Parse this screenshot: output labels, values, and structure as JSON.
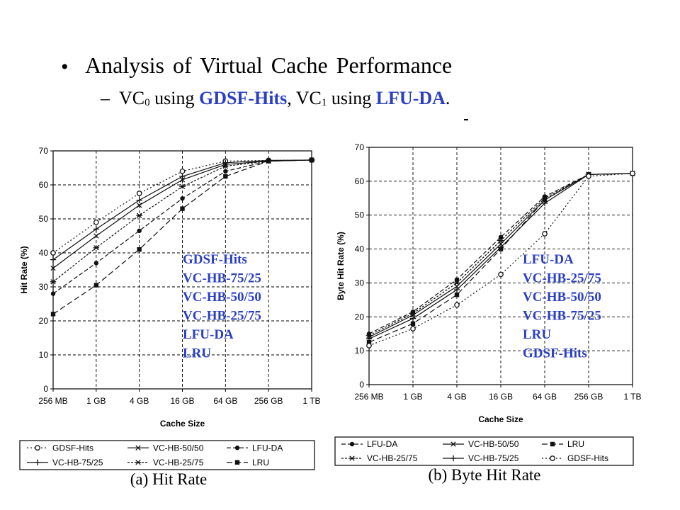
{
  "slide": {
    "bullet": "•",
    "title": "Analysis of Virtual Cache Performance",
    "subtitle": {
      "dash": "–",
      "vc0_prefix": "VC",
      "vc0_sub": "0",
      "using_1": " using ",
      "algo_1": "GDSF-Hits",
      "sep": ", ",
      "vc1_prefix": "VC",
      "vc1_sub": "1",
      "using_2": " using ",
      "algo_2": "LFU-DA",
      "end": "."
    },
    "stray_mark": "-"
  },
  "colors": {
    "overlay_text": "#2a3fc4",
    "axis": "#000000",
    "series_line": "#111111"
  },
  "chart_data": [
    {
      "id": "hit-rate",
      "type": "line",
      "caption": "(a) Hit Rate",
      "xlabel": "Cache Size",
      "ylabel": "Hit Rate (%)",
      "categories": [
        "256 MB",
        "1 GB",
        "4 GB",
        "16 GB",
        "64 GB",
        "256 GB",
        "1 TB"
      ],
      "ylim": [
        0,
        70
      ],
      "yticks": [
        0,
        10,
        20,
        30,
        40,
        50,
        60,
        70
      ],
      "grid": true,
      "legend_position": "bottom",
      "legend_rows": [
        [
          "GDSF-Hits",
          "VC-HB-50/50",
          "LFU-DA"
        ],
        [
          "VC-HB-75/25",
          "VC-HB-25/75",
          "LRU"
        ]
      ],
      "series": [
        {
          "name": "GDSF-Hits",
          "marker": "circle",
          "dash": "2,3",
          "values": [
            40.0,
            49.0,
            57.5,
            64.0,
            67.0,
            67.2,
            67.3
          ]
        },
        {
          "name": "VC-HB-75/25",
          "marker": "plus",
          "dash": "",
          "values": [
            38.0,
            47.0,
            55.5,
            62.5,
            66.5,
            67.2,
            67.3
          ]
        },
        {
          "name": "VC-HB-50/50",
          "marker": "x",
          "dash": "",
          "values": [
            35.5,
            45.0,
            54.0,
            61.5,
            66.0,
            67.0,
            67.3
          ]
        },
        {
          "name": "VC-HB-25/75",
          "marker": "star",
          "dash": "3,2",
          "values": [
            31.5,
            41.5,
            51.0,
            59.5,
            65.5,
            67.0,
            67.3
          ]
        },
        {
          "name": "LFU-DA",
          "marker": "dot",
          "dash": "6,3",
          "values": [
            28.0,
            37.0,
            46.5,
            56.0,
            64.0,
            67.0,
            67.3
          ]
        },
        {
          "name": "LRU",
          "marker": "square",
          "dash": "8,4",
          "values": [
            22.0,
            30.5,
            41.0,
            53.0,
            62.5,
            67.0,
            67.3
          ]
        }
      ],
      "overlay_labels": [
        "GDSF-Hits",
        "VC-HB-75/25",
        "VC-HB-50/50",
        "VC-HB-25/75",
        "LFU-DA",
        "LRU"
      ]
    },
    {
      "id": "byte-hit-rate",
      "type": "line",
      "caption": "(b) Byte Hit Rate",
      "xlabel": "Cache Size",
      "ylabel": "Byte Hit Rate (%)",
      "categories": [
        "256 MB",
        "1 GB",
        "4 GB",
        "16 GB",
        "64 GB",
        "256 GB",
        "1 TB"
      ],
      "ylim": [
        0,
        70
      ],
      "yticks": [
        0,
        10,
        20,
        30,
        40,
        50,
        60,
        70
      ],
      "grid": true,
      "legend_position": "bottom",
      "legend_rows": [
        [
          "LFU-DA",
          "VC-HB-50/50",
          "LRU"
        ],
        [
          "VC-HB-25/75",
          "VC-HB-75/25",
          "GDSF-Hits"
        ]
      ],
      "series": [
        {
          "name": "LFU-DA",
          "marker": "dot",
          "dash": "6,3",
          "values": [
            15.0,
            21.5,
            31.0,
            43.5,
            55.5,
            62.0,
            62.3
          ]
        },
        {
          "name": "VC-HB-25/75",
          "marker": "star",
          "dash": "3,2",
          "values": [
            14.5,
            21.0,
            30.0,
            42.5,
            55.0,
            62.0,
            62.3
          ]
        },
        {
          "name": "VC-HB-50/50",
          "marker": "x",
          "dash": "",
          "values": [
            14.0,
            20.5,
            29.0,
            41.5,
            54.5,
            62.0,
            62.3
          ]
        },
        {
          "name": "VC-HB-75/25",
          "marker": "plus",
          "dash": "",
          "values": [
            13.5,
            19.5,
            28.0,
            40.5,
            53.5,
            62.0,
            62.3
          ]
        },
        {
          "name": "LRU",
          "marker": "square",
          "dash": "8,4",
          "values": [
            12.5,
            18.0,
            26.5,
            40.0,
            54.5,
            62.0,
            62.3
          ]
        },
        {
          "name": "GDSF-Hits",
          "marker": "circle",
          "dash": "2,3",
          "values": [
            11.5,
            16.5,
            23.5,
            32.5,
            44.5,
            61.5,
            62.3
          ]
        }
      ],
      "overlay_labels": [
        "LFU-DA",
        "VC-HB-25/75",
        "VC-HB-50/50",
        "VC-HB-75/25",
        "LRU",
        "GDSF-Hits"
      ]
    }
  ]
}
